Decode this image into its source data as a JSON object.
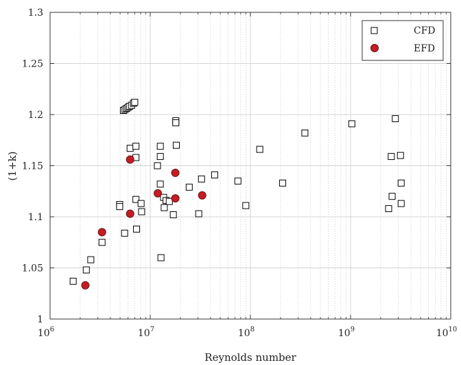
{
  "chart_data": {
    "type": "scatter",
    "xlabel": "Reynolds number",
    "ylabel": "(1+k)",
    "xscale": "log",
    "xlim": [
      1000000,
      10000000000
    ],
    "ylim": [
      1.0,
      1.3
    ],
    "x_tick_labels": [
      {
        "base": "10",
        "exp": "6"
      },
      {
        "base": "10",
        "exp": "7"
      },
      {
        "base": "10",
        "exp": "8"
      },
      {
        "base": "10",
        "exp": "9"
      },
      {
        "base": "10",
        "exp": "10"
      }
    ],
    "y_ticks": [
      "1",
      "1.05",
      "1.1",
      "1.15",
      "1.2",
      "1.25",
      "1.3"
    ],
    "grid": true,
    "legend_position": "top-right",
    "series": [
      {
        "name": "CFD",
        "marker": "square-open",
        "color": "#000000",
        "points": [
          [
            1700000,
            1.037
          ],
          [
            2300000,
            1.048
          ],
          [
            2550000,
            1.058
          ],
          [
            3300000,
            1.075
          ],
          [
            4950000,
            1.112
          ],
          [
            4950000,
            1.11
          ],
          [
            5550000,
            1.084
          ],
          [
            5400000,
            1.204
          ],
          [
            5600000,
            1.205
          ],
          [
            5800000,
            1.206
          ],
          [
            6000000,
            1.207
          ],
          [
            6200000,
            1.208
          ],
          [
            6500000,
            1.209
          ],
          [
            6800000,
            1.211
          ],
          [
            7000000,
            1.212
          ],
          [
            6300000,
            1.167
          ],
          [
            7200000,
            1.169
          ],
          [
            7200000,
            1.158
          ],
          [
            7200000,
            1.117
          ],
          [
            7300000,
            1.088
          ],
          [
            8100000,
            1.113
          ],
          [
            8200000,
            1.105
          ],
          [
            11800000,
            1.15
          ],
          [
            12600000,
            1.169
          ],
          [
            12600000,
            1.159
          ],
          [
            12600000,
            1.132
          ],
          [
            12800000,
            1.06
          ],
          [
            13600000,
            1.119
          ],
          [
            13800000,
            1.109
          ],
          [
            14400000,
            1.116
          ],
          [
            15500000,
            1.115
          ],
          [
            17000000,
            1.102
          ],
          [
            18000000,
            1.194
          ],
          [
            18000000,
            1.192
          ],
          [
            18200000,
            1.17
          ],
          [
            24500000,
            1.129
          ],
          [
            30500000,
            1.103
          ],
          [
            32500000,
            1.137
          ],
          [
            44000000,
            1.141
          ],
          [
            75000000,
            1.135
          ],
          [
            90000000,
            1.111
          ],
          [
            124000000,
            1.166
          ],
          [
            210000000,
            1.133
          ],
          [
            350000000,
            1.182
          ],
          [
            1030000000,
            1.191
          ],
          [
            2400000000,
            1.108
          ],
          [
            2550000000,
            1.159
          ],
          [
            2600000000,
            1.12
          ],
          [
            2800000000,
            1.196
          ],
          [
            3150000000,
            1.16
          ],
          [
            3200000000,
            1.133
          ],
          [
            3200000000,
            1.113
          ]
        ]
      },
      {
        "name": "EFD",
        "marker": "circle-filled",
        "color": "#c41e24",
        "points": [
          [
            2250000,
            1.033
          ],
          [
            3300000,
            1.085
          ],
          [
            6300000,
            1.156
          ],
          [
            6300000,
            1.103
          ],
          [
            11900000,
            1.123
          ],
          [
            17800000,
            1.143
          ],
          [
            17800000,
            1.118
          ],
          [
            33000000,
            1.121
          ]
        ]
      }
    ]
  }
}
